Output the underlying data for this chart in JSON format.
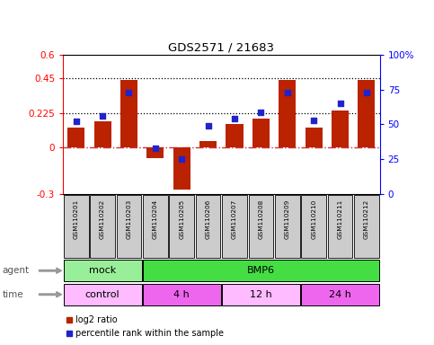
{
  "title": "GDS2571 / 21683",
  "samples": [
    "GSM110201",
    "GSM110202",
    "GSM110203",
    "GSM110204",
    "GSM110205",
    "GSM110206",
    "GSM110207",
    "GSM110208",
    "GSM110209",
    "GSM110210",
    "GSM110211",
    "GSM110212"
  ],
  "log2_ratio": [
    0.13,
    0.17,
    0.44,
    -0.065,
    -0.27,
    0.04,
    0.155,
    0.19,
    0.44,
    0.13,
    0.24,
    0.44
  ],
  "percentile_rank": [
    52,
    56,
    73,
    33,
    25,
    49,
    54,
    59,
    73,
    53,
    65,
    73
  ],
  "ylim_left": [
    -0.3,
    0.6
  ],
  "ylim_right": [
    0,
    100
  ],
  "yticks_left": [
    -0.3,
    0.0,
    0.225,
    0.45,
    0.6
  ],
  "yticks_right": [
    0,
    25,
    50,
    75,
    100
  ],
  "ytick_labels_left": [
    "-0.3",
    "0",
    "0.225",
    "0.45",
    "0.6"
  ],
  "ytick_labels_right": [
    "0",
    "25",
    "50",
    "75",
    "100%"
  ],
  "hlines": [
    0.225,
    0.45
  ],
  "bar_color": "#bb2200",
  "dot_color": "#2222cc",
  "zero_line_color": "#cc3333",
  "agent_groups": [
    {
      "label": "mock",
      "start": 0,
      "end": 3,
      "color": "#99ee99"
    },
    {
      "label": "BMP6",
      "start": 3,
      "end": 12,
      "color": "#44dd44"
    }
  ],
  "time_groups": [
    {
      "label": "control",
      "start": 0,
      "end": 3,
      "color": "#ffbbff"
    },
    {
      "label": "4 h",
      "start": 3,
      "end": 6,
      "color": "#ee66ee"
    },
    {
      "label": "12 h",
      "start": 6,
      "end": 9,
      "color": "#ffbbff"
    },
    {
      "label": "24 h",
      "start": 9,
      "end": 12,
      "color": "#ee66ee"
    }
  ],
  "legend_bar_color": "#bb2200",
  "legend_dot_color": "#2222cc",
  "legend_bar_label": "log2 ratio",
  "legend_dot_label": "percentile rank within the sample",
  "bg_color": "#ffffff",
  "sample_box_color": "#cccccc",
  "agent_label": "agent",
  "time_label": "time",
  "arrow_color": "#999999"
}
